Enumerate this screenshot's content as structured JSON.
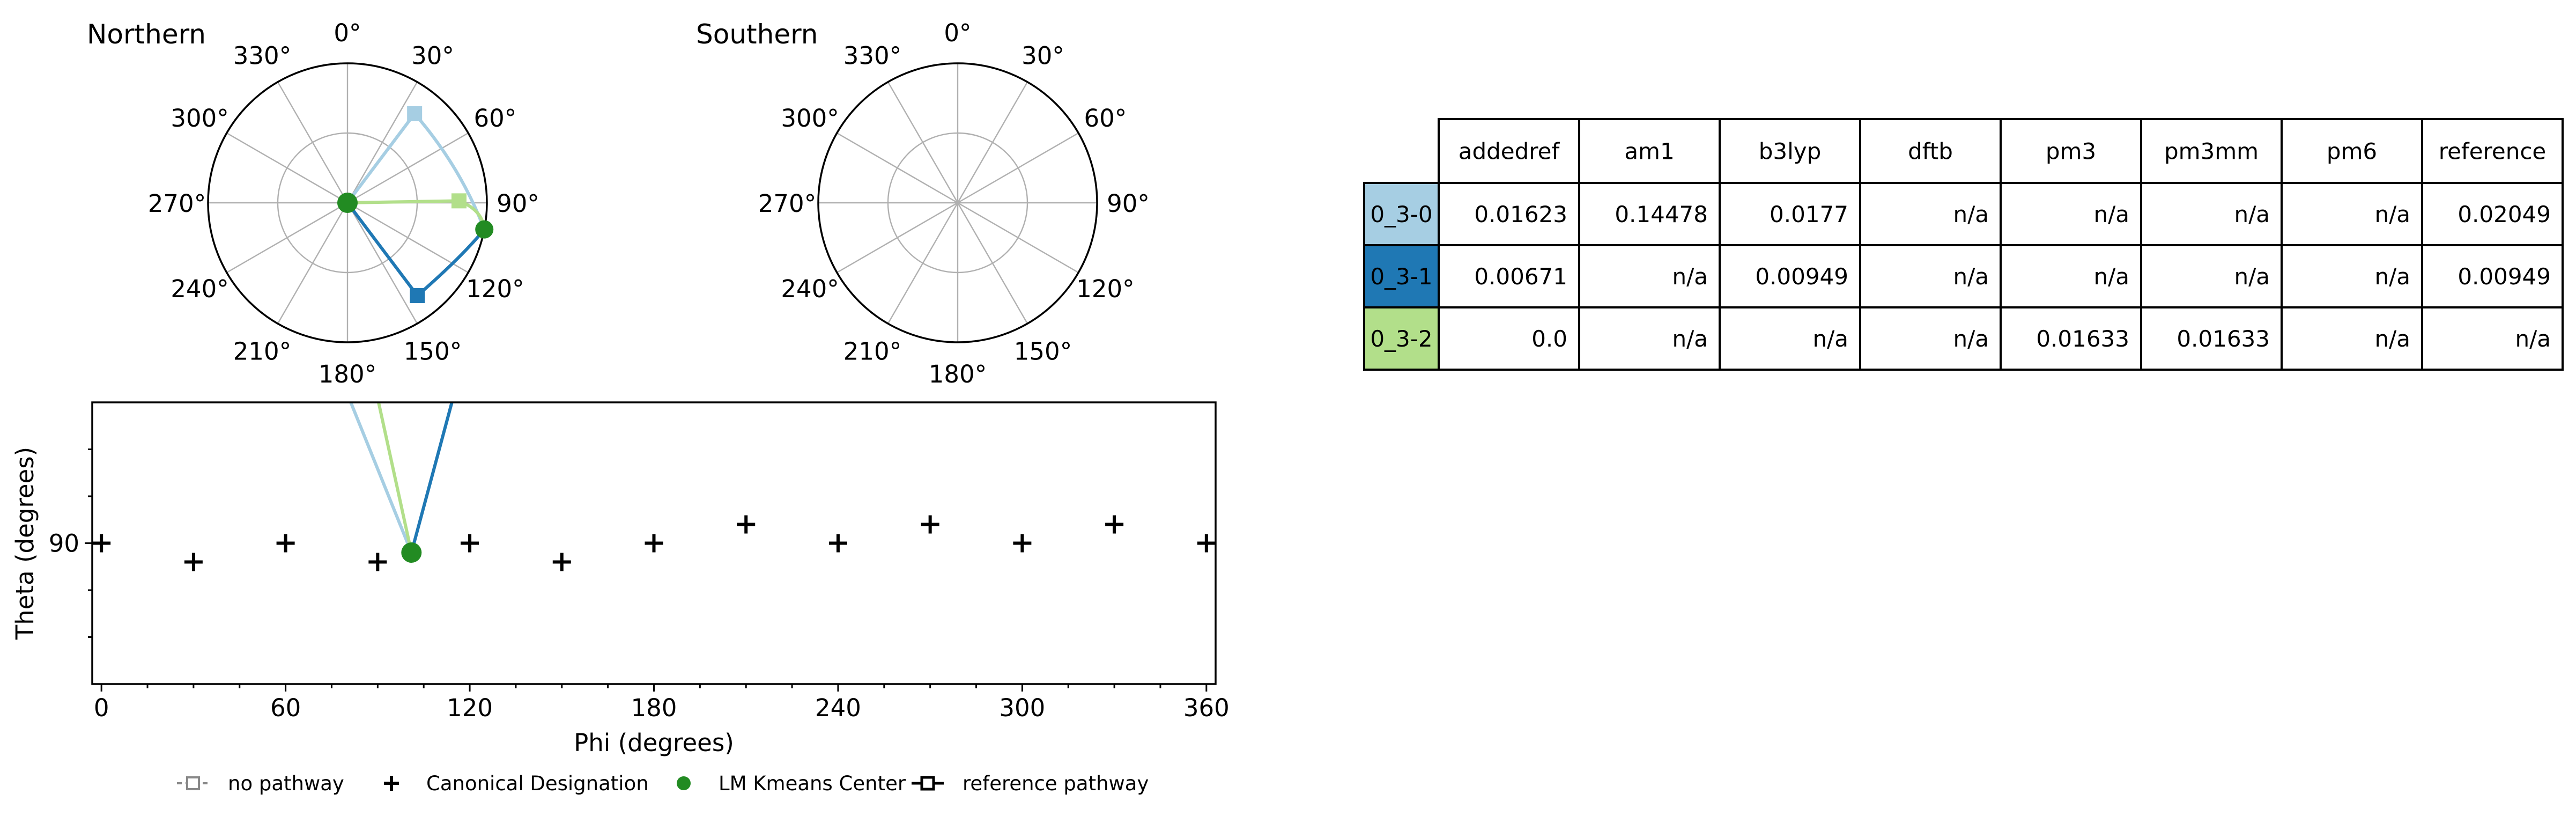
{
  "chart_data": [
    {
      "type": "scatter",
      "subtype": "polar",
      "title": "Northern",
      "angle_ticks": [
        "0°",
        "30°",
        "60°",
        "90°",
        "120°",
        "150°",
        "180°",
        "210°",
        "240°",
        "270°",
        "300°",
        "330°"
      ],
      "center": {
        "name": "LM Kmeans Center",
        "phi": 0,
        "theta": 0,
        "color": "#228B22"
      },
      "series": [
        {
          "name": "0_3-0",
          "color": "#a6cee3",
          "endpoint": {
            "phi": 37,
            "theta": 72
          }
        },
        {
          "name": "0_3-1",
          "color": "#1f78b4",
          "endpoint": {
            "phi": 143,
            "theta": 75
          }
        },
        {
          "name": "0_3-2",
          "color": "#b2df8a",
          "endpoint": {
            "phi": 89,
            "theta": 72
          }
        }
      ],
      "extra_points": [
        {
          "phi": 101,
          "theta": 90,
          "color": "#228B22"
        }
      ],
      "grid": true
    },
    {
      "type": "scatter",
      "subtype": "polar",
      "title": "Southern",
      "angle_ticks": [
        "0°",
        "30°",
        "60°",
        "90°",
        "120°",
        "150°",
        "180°",
        "210°",
        "240°",
        "270°",
        "300°",
        "330°"
      ],
      "series": [],
      "grid": true
    },
    {
      "type": "scatter",
      "xlabel": "Phi (degrees)",
      "ylabel": "Theta (degrees)",
      "xlim": [
        -3,
        363
      ],
      "ylim": [
        60,
        120
      ],
      "xticks": [
        "0",
        "60",
        "120",
        "180",
        "240",
        "300",
        "360"
      ],
      "yticks": [
        "90"
      ],
      "canonical_designations": [
        {
          "phi": 0,
          "theta": 90
        },
        {
          "phi": 30,
          "theta": 86
        },
        {
          "phi": 60,
          "theta": 90
        },
        {
          "phi": 90,
          "theta": 86
        },
        {
          "phi": 120,
          "theta": 90
        },
        {
          "phi": 150,
          "theta": 86
        },
        {
          "phi": 180,
          "theta": 90
        },
        {
          "phi": 210,
          "theta": 94
        },
        {
          "phi": 240,
          "theta": 90
        },
        {
          "phi": 270,
          "theta": 94
        },
        {
          "phi": 300,
          "theta": 90
        },
        {
          "phi": 330,
          "theta": 94
        },
        {
          "phi": 360,
          "theta": 90
        }
      ],
      "kmeans_center": {
        "phi": 101,
        "theta": 88
      },
      "pathways": [
        {
          "name": "0_3-0",
          "color": "#a6cee3",
          "to": {
            "phi": 77,
            "theta": 120
          }
        },
        {
          "name": "0_3-1",
          "color": "#1f78b4",
          "to": {
            "phi": 117,
            "theta": 120
          }
        },
        {
          "name": "0_3-2",
          "color": "#b2df8a",
          "to": {
            "phi": 88,
            "theta": 120
          }
        }
      ],
      "grid": false
    }
  ],
  "legend": {
    "items": [
      {
        "label": "no pathway",
        "marker": "dashed-square"
      },
      {
        "label": "Canonical Designation",
        "marker": "plus"
      },
      {
        "label": "LM Kmeans Center",
        "marker": "green-dot"
      },
      {
        "label": "reference pathway",
        "marker": "solid-square"
      }
    ],
    "placement": "bottom"
  },
  "table": {
    "columns": [
      "addedref",
      "am1",
      "b3lyp",
      "dftb",
      "pm3",
      "pm3mm",
      "pm6",
      "reference"
    ],
    "rows": [
      {
        "label": "0_3-0",
        "color": "#a6cee3",
        "cells": [
          "0.01623",
          "0.14478",
          "0.0177",
          "n/a",
          "n/a",
          "n/a",
          "n/a",
          "0.02049"
        ]
      },
      {
        "label": "0_3-1",
        "color": "#1f78b4",
        "cells": [
          "0.00671",
          "n/a",
          "0.00949",
          "n/a",
          "n/a",
          "n/a",
          "n/a",
          "0.00949"
        ]
      },
      {
        "label": "0_3-2",
        "color": "#b2df8a",
        "cells": [
          "0.0",
          "n/a",
          "n/a",
          "n/a",
          "0.01633",
          "0.01633",
          "n/a",
          "n/a"
        ]
      }
    ]
  }
}
